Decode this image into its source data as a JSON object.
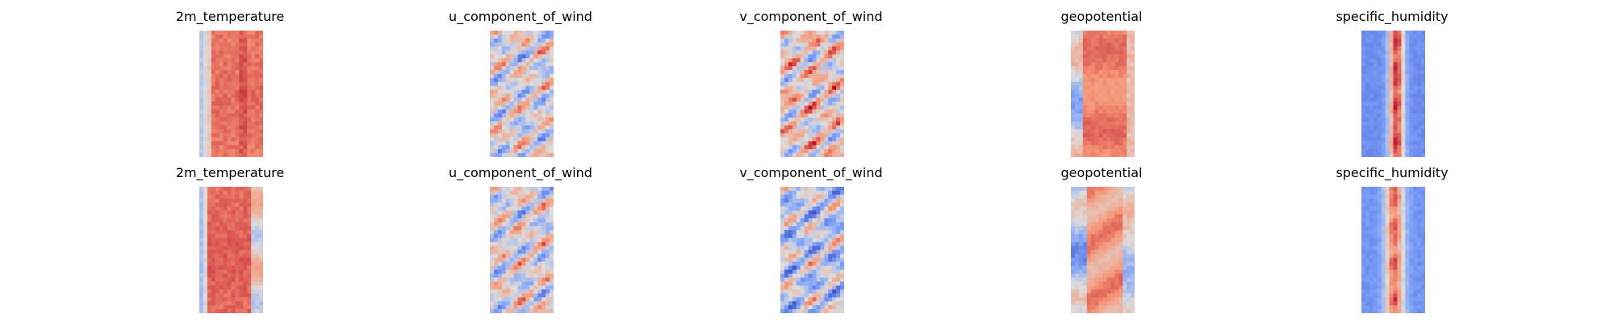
{
  "chart_data": {
    "type": "heatmap",
    "colormap": "coolwarm",
    "axes_visible": false,
    "grid": false,
    "legend": "none",
    "rows": [
      {
        "panels": [
          {
            "title": "2m_temperature"
          },
          {
            "title": "u_component_of_wind"
          },
          {
            "title": "v_component_of_wind"
          },
          {
            "title": "geopotential"
          },
          {
            "title": "specific_humidity"
          }
        ]
      },
      {
        "panels": [
          {
            "title": "2m_temperature"
          },
          {
            "title": "u_component_of_wind"
          },
          {
            "title": "v_component_of_wind"
          },
          {
            "title": "geopotential"
          },
          {
            "title": "specific_humidity"
          }
        ]
      }
    ]
  }
}
